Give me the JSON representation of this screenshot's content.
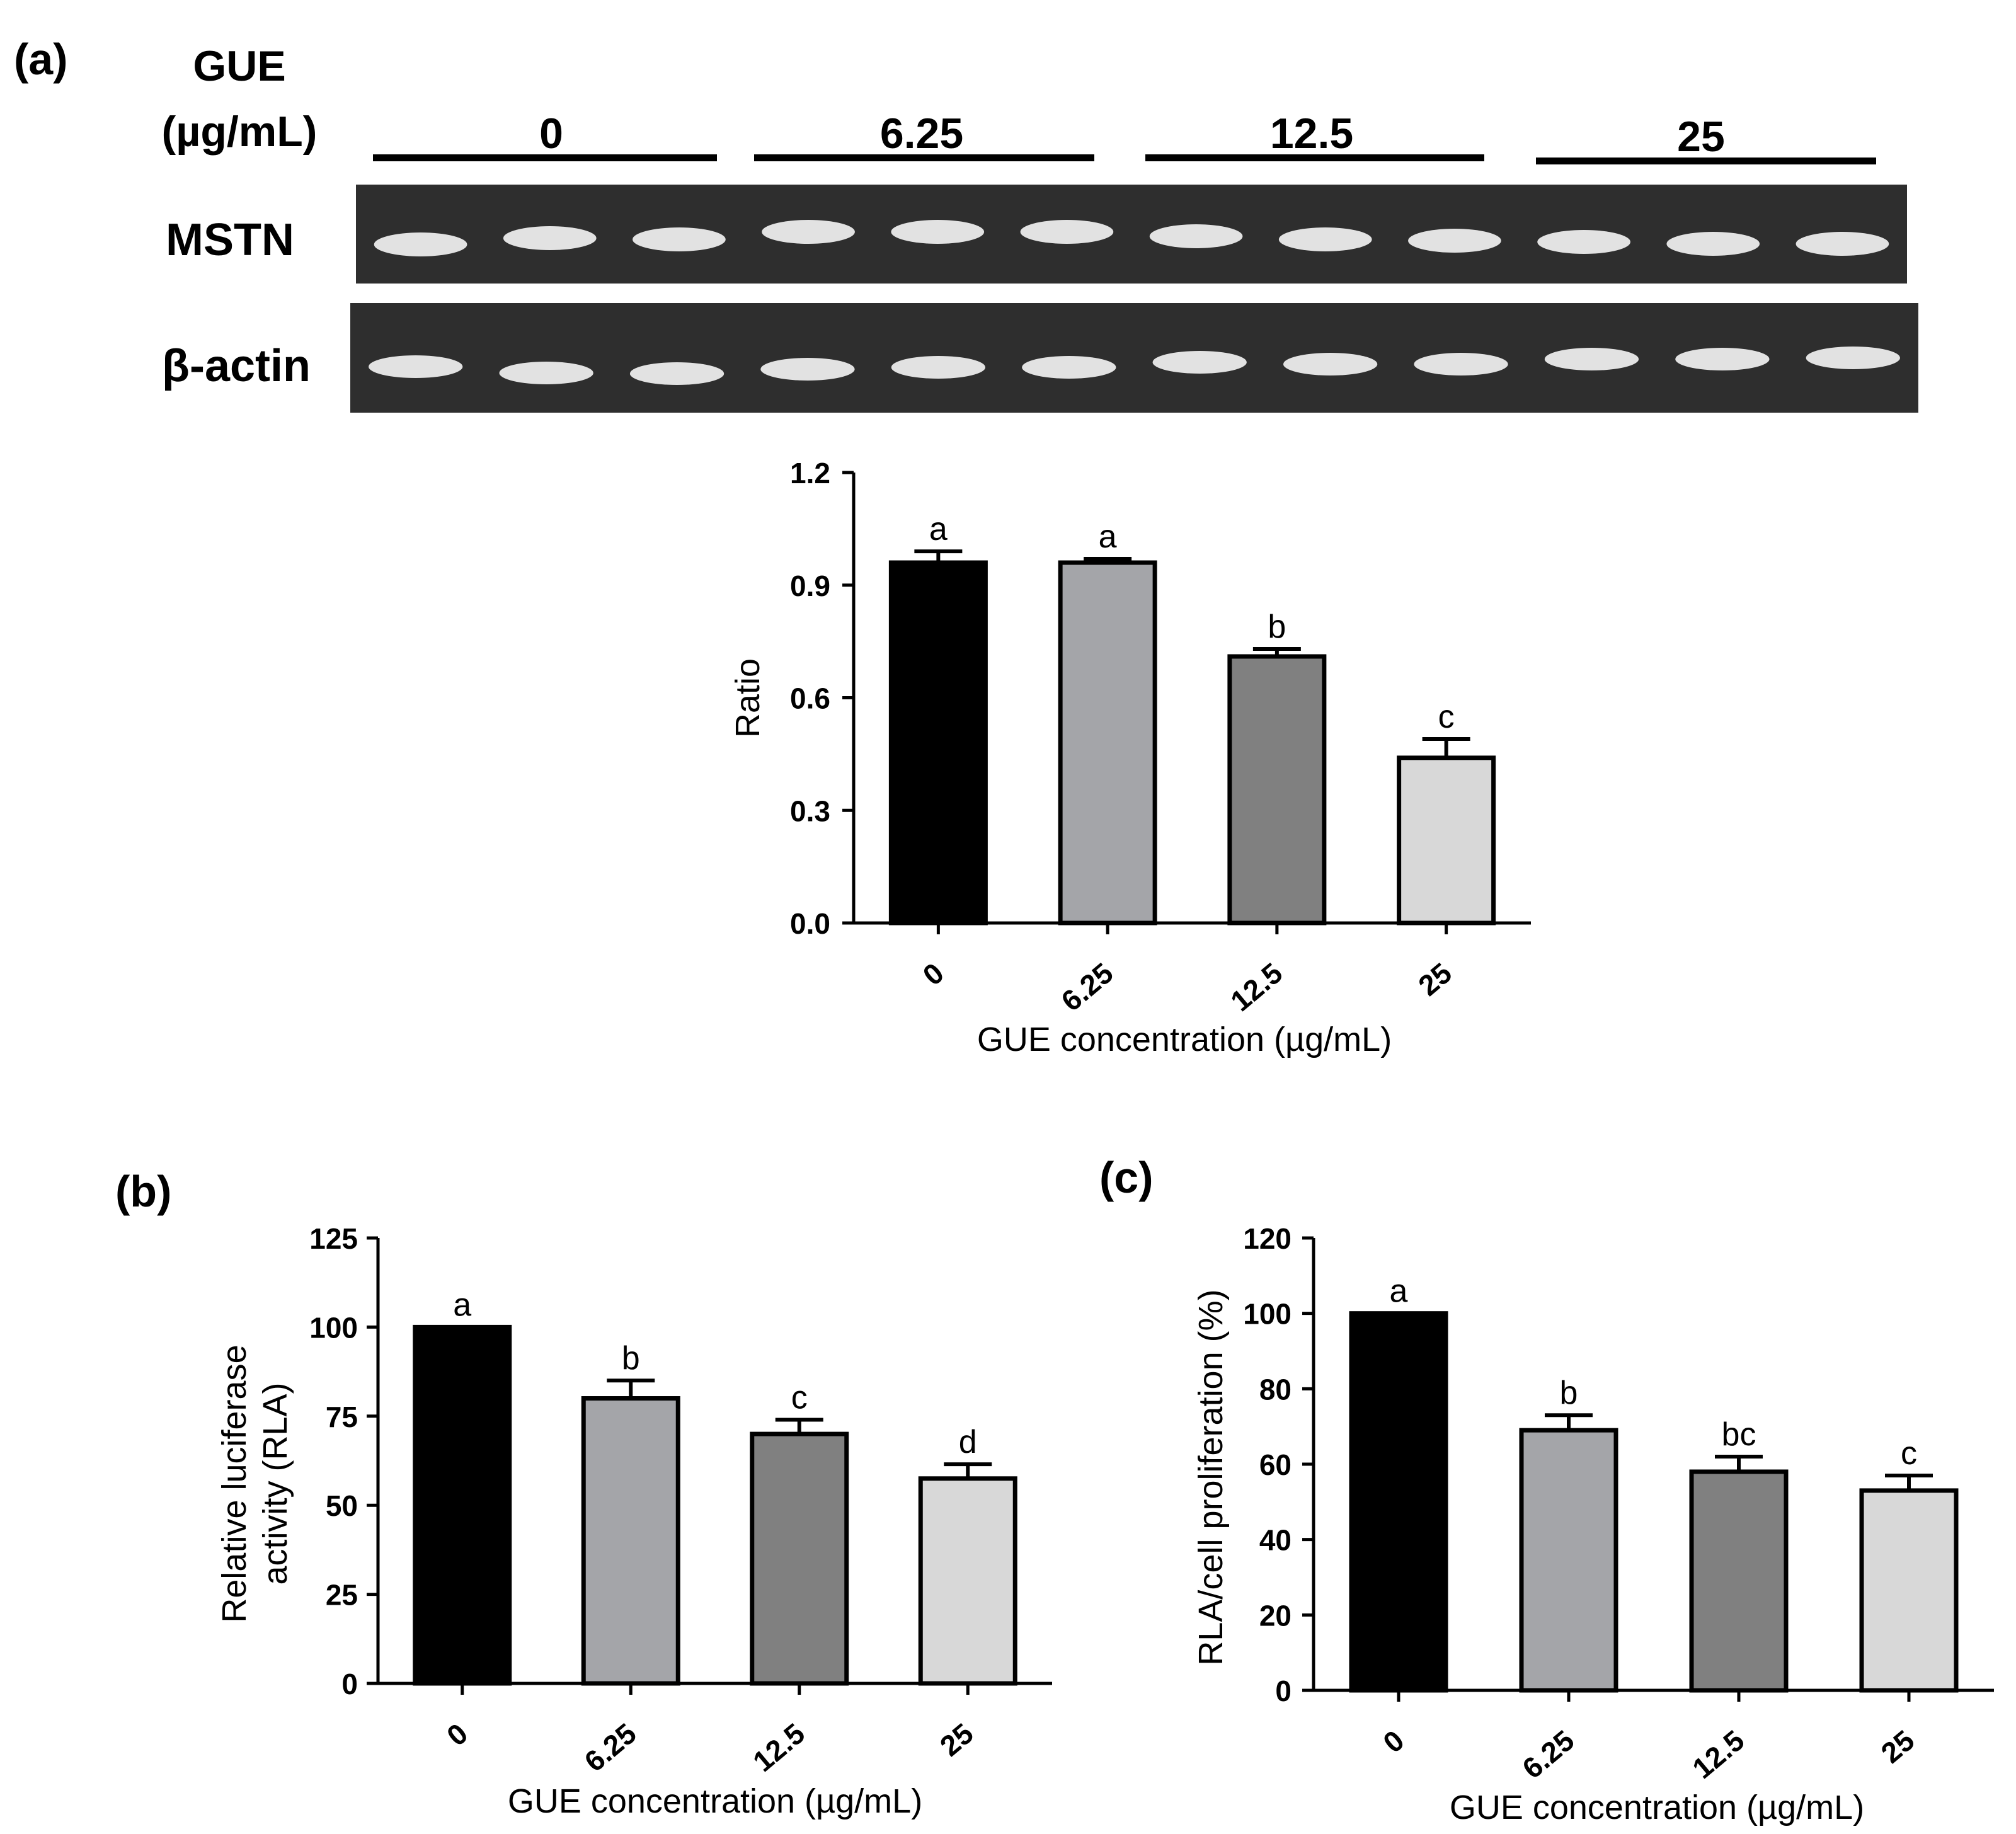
{
  "panel_labels": {
    "a": "(a)",
    "b": "(b)",
    "c": "(c)"
  },
  "gel": {
    "treatment_label_line1": "GUE",
    "treatment_label_line2": "(µg/mL)",
    "groups": [
      "0",
      "6.25",
      "12.5",
      "25"
    ],
    "rows": [
      {
        "label": "MSTN",
        "lanes_per_group": 3
      },
      {
        "label": "β-actin",
        "lanes_per_group": 3
      }
    ],
    "background_color": "#2e2e2e",
    "band_color": "#f2f2f2"
  },
  "chart_data": [
    {
      "panel": "(a)",
      "type": "bar",
      "categories": [
        "0",
        "6.25",
        "12.5",
        "25"
      ],
      "values": [
        0.96,
        0.96,
        0.71,
        0.44
      ],
      "errors": [
        0.03,
        0.01,
        0.02,
        0.05
      ],
      "letters": [
        "a",
        "a",
        "b",
        "c"
      ],
      "bar_colors": [
        "#000000",
        "#a4a5a9",
        "#808080",
        "#d8d8d8"
      ],
      "xlabel": "GUE concentration (µg/mL)",
      "ylabel": "Ratio",
      "ylim": [
        0,
        1.2
      ],
      "yticks": [
        "0.0",
        "0.3",
        "0.6",
        "0.9",
        "1.2"
      ],
      "ytick_values": [
        0,
        0.3,
        0.6,
        0.9,
        1.2
      ]
    },
    {
      "panel": "(b)",
      "type": "bar",
      "categories": [
        "0",
        "6.25",
        "12.5",
        "25"
      ],
      "values": [
        100,
        80,
        70,
        57.5
      ],
      "errors": [
        0,
        5,
        4,
        4
      ],
      "letters": [
        "a",
        "b",
        "c",
        "d"
      ],
      "bar_colors": [
        "#000000",
        "#a4a5a9",
        "#808080",
        "#d8d8d8"
      ],
      "xlabel": "GUE concentration (µg/mL)",
      "ylabel_line1": "Relative luciferase",
      "ylabel_line2": "activity (RLA)",
      "ylim": [
        0,
        125
      ],
      "yticks": [
        "0",
        "25",
        "50",
        "75",
        "100",
        "125"
      ],
      "ytick_values": [
        0,
        25,
        50,
        75,
        100,
        125
      ]
    },
    {
      "panel": "(c)",
      "type": "bar",
      "categories": [
        "0",
        "6.25",
        "12.5",
        "25"
      ],
      "values": [
        100,
        69,
        58,
        53
      ],
      "errors": [
        0,
        4,
        4,
        4
      ],
      "letters": [
        "a",
        "b",
        "bc",
        "c"
      ],
      "bar_colors": [
        "#000000",
        "#a4a5a9",
        "#808080",
        "#d8d8d8"
      ],
      "xlabel": "GUE concentration (µg/mL)",
      "ylabel": "RLA/cell proliferation  (%)",
      "ylim": [
        0,
        120
      ],
      "yticks": [
        "0",
        "20",
        "40",
        "60",
        "80",
        "100",
        "120"
      ],
      "ytick_values": [
        0,
        20,
        40,
        60,
        80,
        100,
        120
      ]
    }
  ]
}
